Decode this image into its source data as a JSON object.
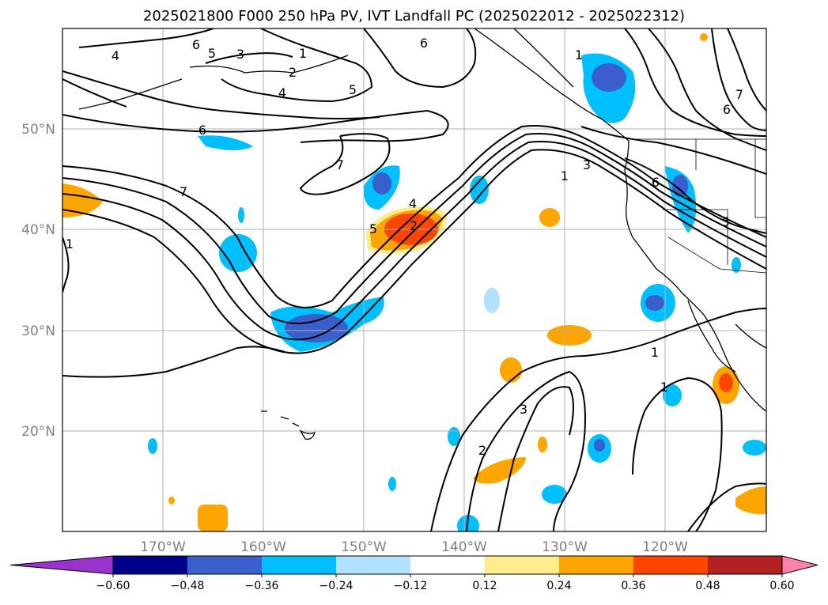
{
  "title": "2025021800 F000 250 hPa PV, IVT Landfall PC (2025022012 - 2025022312)",
  "map": {
    "lon_labels": [
      "170°W",
      "160°W",
      "150°W",
      "140°W",
      "130°W",
      "120°W"
    ],
    "lat_labels": [
      "50°N",
      "40°N",
      "30°N",
      "20°N"
    ]
  },
  "colorbar": {
    "ticks": [
      "−0.60",
      "−0.48",
      "−0.36",
      "−0.24",
      "−0.12",
      "0.12",
      "0.24",
      "0.36",
      "0.48",
      "0.60"
    ],
    "colors": [
      "#9a32cd",
      "#00008b",
      "#3a5fcd",
      "#00bfff",
      "#b0e2ff",
      "#ffffff",
      "#ffec8b",
      "#ffa500",
      "#ff4500",
      "#b22222",
      "#ff82ab"
    ]
  },
  "contour_labels": [
    "6",
    "5",
    "3",
    "1",
    "2",
    "4",
    "5",
    "6",
    "4",
    "6",
    "7",
    "7",
    "1",
    "5",
    "2",
    "4",
    "3",
    "1",
    "6",
    "5",
    "6",
    "7",
    "1",
    "1",
    "3",
    "2",
    "1"
  ]
}
